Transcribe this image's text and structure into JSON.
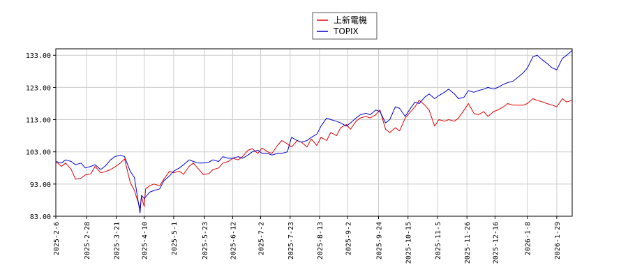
{
  "chart_data": {
    "type": "line",
    "title": "",
    "xlabel": "",
    "ylabel": "",
    "ylim": [
      83,
      135
    ],
    "y_ticks": [
      "83.00",
      "93.00",
      "103.00",
      "113.00",
      "123.00",
      "133.00"
    ],
    "x_ticks": [
      "2025-2-6",
      "2025-2-28",
      "2025-3-21",
      "2025-4-10",
      "2025-5-1",
      "2025-5-23",
      "2025-6-12",
      "2025-7-2",
      "2025-7-23",
      "2025-8-13",
      "2025-9-2",
      "2025-9-24",
      "2025-10-15",
      "2025-11-5",
      "2025-11-26",
      "2025-12-16",
      "2026-1-8",
      "2026-1-29"
    ],
    "grid": true,
    "legend_position": "top-center",
    "series": [
      {
        "name": "上新電機",
        "color": "#dd0000",
        "points": [
          [
            "2025-02-06",
            100.0
          ],
          [
            "2025-02-10",
            98.5
          ],
          [
            "2025-02-13",
            99.5
          ],
          [
            "2025-02-17",
            97.5
          ],
          [
            "2025-02-20",
            94.5
          ],
          [
            "2025-02-24",
            94.8
          ],
          [
            "2025-02-27",
            95.8
          ],
          [
            "2025-03-03",
            96.2
          ],
          [
            "2025-03-06",
            98.5
          ],
          [
            "2025-03-10",
            96.5
          ],
          [
            "2025-03-13",
            96.8
          ],
          [
            "2025-03-17",
            97.5
          ],
          [
            "2025-03-20",
            98.3
          ],
          [
            "2025-03-24",
            99.5
          ],
          [
            "2025-03-27",
            100.8
          ],
          [
            "2025-03-31",
            93.5
          ],
          [
            "2025-04-03",
            91.0
          ],
          [
            "2025-04-07",
            85.5
          ],
          [
            "2025-04-08",
            89.0
          ],
          [
            "2025-04-10",
            86.0
          ],
          [
            "2025-04-11",
            91.5
          ],
          [
            "2025-04-14",
            92.5
          ],
          [
            "2025-04-17",
            93.0
          ],
          [
            "2025-04-21",
            92.5
          ],
          [
            "2025-04-24",
            94.5
          ],
          [
            "2025-04-28",
            97.0
          ],
          [
            "2025-05-01",
            96.5
          ],
          [
            "2025-05-05",
            97.0
          ],
          [
            "2025-05-08",
            96.0
          ],
          [
            "2025-05-12",
            98.5
          ],
          [
            "2025-05-15",
            99.5
          ],
          [
            "2025-05-19",
            97.5
          ],
          [
            "2025-05-22",
            96.0
          ],
          [
            "2025-05-26",
            96.2
          ],
          [
            "2025-05-29",
            97.5
          ],
          [
            "2025-06-02",
            98.0
          ],
          [
            "2025-06-05",
            99.5
          ],
          [
            "2025-06-09",
            100.0
          ],
          [
            "2025-06-12",
            101.0
          ],
          [
            "2025-06-16",
            100.5
          ],
          [
            "2025-06-19",
            101.5
          ],
          [
            "2025-06-23",
            103.5
          ],
          [
            "2025-06-26",
            104.0
          ],
          [
            "2025-06-30",
            102.5
          ],
          [
            "2025-07-03",
            104.2
          ],
          [
            "2025-07-07",
            103.0
          ],
          [
            "2025-07-10",
            102.5
          ],
          [
            "2025-07-14",
            105.0
          ],
          [
            "2025-07-17",
            106.5
          ],
          [
            "2025-07-21",
            105.5
          ],
          [
            "2025-07-24",
            104.5
          ],
          [
            "2025-07-28",
            106.5
          ],
          [
            "2025-07-31",
            106.0
          ],
          [
            "2025-08-04",
            104.5
          ],
          [
            "2025-08-07",
            107.0
          ],
          [
            "2025-08-11",
            105.0
          ],
          [
            "2025-08-14",
            107.5
          ],
          [
            "2025-08-18",
            106.5
          ],
          [
            "2025-08-21",
            109.0
          ],
          [
            "2025-08-25",
            108.0
          ],
          [
            "2025-08-28",
            110.5
          ],
          [
            "2025-09-01",
            111.5
          ],
          [
            "2025-09-04",
            110.0
          ],
          [
            "2025-09-08",
            112.5
          ],
          [
            "2025-09-11",
            113.5
          ],
          [
            "2025-09-15",
            114.0
          ],
          [
            "2025-09-18",
            113.5
          ],
          [
            "2025-09-22",
            114.5
          ],
          [
            "2025-09-25",
            116.0
          ],
          [
            "2025-09-29",
            110.0
          ],
          [
            "2025-10-02",
            109.0
          ],
          [
            "2025-10-06",
            110.5
          ],
          [
            "2025-10-09",
            109.5
          ],
          [
            "2025-10-13",
            113.5
          ],
          [
            "2025-10-16",
            115.0
          ],
          [
            "2025-10-20",
            117.0
          ],
          [
            "2025-10-23",
            119.0
          ],
          [
            "2025-10-27",
            117.5
          ],
          [
            "2025-10-30",
            116.0
          ],
          [
            "2025-11-03",
            111.0
          ],
          [
            "2025-11-06",
            113.0
          ],
          [
            "2025-11-10",
            112.5
          ],
          [
            "2025-11-13",
            113.0
          ],
          [
            "2025-11-17",
            112.5
          ],
          [
            "2025-11-20",
            113.5
          ],
          [
            "2025-11-24",
            116.0
          ],
          [
            "2025-11-27",
            118.0
          ],
          [
            "2025-12-01",
            115.0
          ],
          [
            "2025-12-04",
            114.5
          ],
          [
            "2025-12-08",
            115.5
          ],
          [
            "2025-12-11",
            114.0
          ],
          [
            "2025-12-15",
            115.5
          ],
          [
            "2025-12-18",
            116.0
          ],
          [
            "2025-12-22",
            117.0
          ],
          [
            "2025-12-25",
            118.0
          ],
          [
            "2025-12-29",
            117.5
          ],
          [
            "2026-01-05",
            117.5
          ],
          [
            "2026-01-08",
            118.0
          ],
          [
            "2026-01-12",
            119.5
          ],
          [
            "2026-01-15",
            119.0
          ],
          [
            "2026-01-19",
            118.5
          ],
          [
            "2026-01-22",
            118.0
          ],
          [
            "2026-01-26",
            117.5
          ],
          [
            "2026-01-29",
            117.0
          ],
          [
            "2026-02-02",
            119.5
          ],
          [
            "2026-02-05",
            118.5
          ],
          [
            "2026-02-09",
            119.0
          ]
        ]
      },
      {
        "name": "TOPIX",
        "color": "#0000cc",
        "points": [
          [
            "2025-02-06",
            100.0
          ],
          [
            "2025-02-10",
            99.5
          ],
          [
            "2025-02-13",
            100.5
          ],
          [
            "2025-02-17",
            100.0
          ],
          [
            "2025-02-20",
            99.0
          ],
          [
            "2025-02-24",
            99.5
          ],
          [
            "2025-02-27",
            98.0
          ],
          [
            "2025-03-03",
            98.5
          ],
          [
            "2025-03-06",
            99.0
          ],
          [
            "2025-03-10",
            97.5
          ],
          [
            "2025-03-13",
            98.5
          ],
          [
            "2025-03-17",
            100.5
          ],
          [
            "2025-03-20",
            101.5
          ],
          [
            "2025-03-24",
            102.0
          ],
          [
            "2025-03-27",
            101.5
          ],
          [
            "2025-03-31",
            97.0
          ],
          [
            "2025-04-03",
            95.0
          ],
          [
            "2025-04-07",
            84.0
          ],
          [
            "2025-04-08",
            89.5
          ],
          [
            "2025-04-10",
            88.5
          ],
          [
            "2025-04-11",
            89.0
          ],
          [
            "2025-04-14",
            90.5
          ],
          [
            "2025-04-17",
            91.0
          ],
          [
            "2025-04-21",
            91.5
          ],
          [
            "2025-04-24",
            94.0
          ],
          [
            "2025-04-28",
            95.5
          ],
          [
            "2025-05-01",
            97.0
          ],
          [
            "2025-05-05",
            98.0
          ],
          [
            "2025-05-08",
            99.0
          ],
          [
            "2025-05-12",
            100.5
          ],
          [
            "2025-05-15",
            100.0
          ],
          [
            "2025-05-19",
            99.5
          ],
          [
            "2025-05-22",
            99.5
          ],
          [
            "2025-05-26",
            99.8
          ],
          [
            "2025-05-29",
            100.5
          ],
          [
            "2025-06-02",
            100.0
          ],
          [
            "2025-06-05",
            101.5
          ],
          [
            "2025-06-09",
            101.0
          ],
          [
            "2025-06-12",
            101.0
          ],
          [
            "2025-06-16",
            101.5
          ],
          [
            "2025-06-19",
            101.0
          ],
          [
            "2025-06-23",
            102.0
          ],
          [
            "2025-06-26",
            103.0
          ],
          [
            "2025-06-30",
            103.5
          ],
          [
            "2025-07-03",
            102.5
          ],
          [
            "2025-07-07",
            102.5
          ],
          [
            "2025-07-10",
            102.0
          ],
          [
            "2025-07-14",
            102.5
          ],
          [
            "2025-07-17",
            102.5
          ],
          [
            "2025-07-21",
            103.0
          ],
          [
            "2025-07-24",
            107.5
          ],
          [
            "2025-07-28",
            106.5
          ],
          [
            "2025-07-31",
            106.0
          ],
          [
            "2025-08-04",
            106.5
          ],
          [
            "2025-08-07",
            107.5
          ],
          [
            "2025-08-11",
            108.5
          ],
          [
            "2025-08-14",
            111.0
          ],
          [
            "2025-08-18",
            113.5
          ],
          [
            "2025-08-21",
            113.0
          ],
          [
            "2025-08-25",
            112.5
          ],
          [
            "2025-08-28",
            112.0
          ],
          [
            "2025-09-01",
            111.0
          ],
          [
            "2025-09-04",
            112.0
          ],
          [
            "2025-09-08",
            113.5
          ],
          [
            "2025-09-11",
            114.5
          ],
          [
            "2025-09-15",
            115.0
          ],
          [
            "2025-09-18",
            114.5
          ],
          [
            "2025-09-22",
            116.0
          ],
          [
            "2025-09-25",
            115.5
          ],
          [
            "2025-09-29",
            112.0
          ],
          [
            "2025-10-02",
            113.0
          ],
          [
            "2025-10-06",
            117.0
          ],
          [
            "2025-10-09",
            116.5
          ],
          [
            "2025-10-13",
            114.0
          ],
          [
            "2025-10-16",
            116.0
          ],
          [
            "2025-10-20",
            118.5
          ],
          [
            "2025-10-23",
            118.0
          ],
          [
            "2025-10-27",
            120.0
          ],
          [
            "2025-10-30",
            121.0
          ],
          [
            "2025-11-03",
            119.5
          ],
          [
            "2025-11-06",
            120.5
          ],
          [
            "2025-11-10",
            121.5
          ],
          [
            "2025-11-13",
            122.5
          ],
          [
            "2025-11-17",
            121.0
          ],
          [
            "2025-11-20",
            119.5
          ],
          [
            "2025-11-24",
            120.0
          ],
          [
            "2025-11-27",
            122.0
          ],
          [
            "2025-12-01",
            121.5
          ],
          [
            "2025-12-04",
            122.0
          ],
          [
            "2025-12-08",
            122.5
          ],
          [
            "2025-12-11",
            123.0
          ],
          [
            "2025-12-15",
            122.5
          ],
          [
            "2025-12-18",
            123.0
          ],
          [
            "2025-12-22",
            124.0
          ],
          [
            "2025-12-25",
            124.5
          ],
          [
            "2025-12-29",
            125.0
          ],
          [
            "2026-01-05",
            127.5
          ],
          [
            "2026-01-08",
            129.0
          ],
          [
            "2026-01-12",
            132.5
          ],
          [
            "2026-01-15",
            133.0
          ],
          [
            "2026-01-19",
            131.5
          ],
          [
            "2026-01-22",
            130.5
          ],
          [
            "2026-01-26",
            129.0
          ],
          [
            "2026-01-29",
            128.5
          ],
          [
            "2026-02-02",
            132.0
          ],
          [
            "2026-02-05",
            133.0
          ],
          [
            "2026-02-09",
            134.5
          ]
        ]
      }
    ]
  }
}
